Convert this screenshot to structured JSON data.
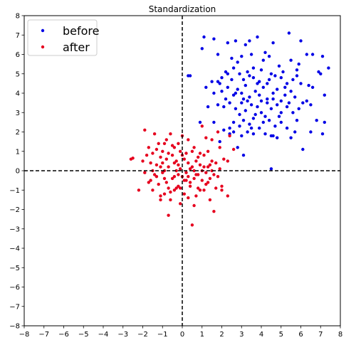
{
  "chart_data": {
    "type": "scatter",
    "title": "Standardization",
    "xlabel": "",
    "ylabel": "",
    "xlim": [
      -8,
      8
    ],
    "ylim": [
      -8,
      8
    ],
    "xticks": [
      "−8",
      "−7",
      "−6",
      "−5",
      "−4",
      "−3",
      "−2",
      "−1",
      "0",
      "1",
      "2",
      "3",
      "4",
      "5",
      "6",
      "7",
      "8"
    ],
    "yticks": [
      "−8",
      "−7",
      "−6",
      "−5",
      "−4",
      "−3",
      "−2",
      "−1",
      "0",
      "1",
      "2",
      "3",
      "4",
      "5",
      "6",
      "7",
      "8"
    ],
    "grid": false,
    "reference_lines": {
      "x": 0,
      "y": 0,
      "style": "dashed"
    },
    "legend": {
      "position": "top-left"
    },
    "series": [
      {
        "name": "before",
        "color": "#0000e6",
        "points": [
          [
            1.1,
            6.9
          ],
          [
            1.6,
            6.8
          ],
          [
            2.3,
            6.6
          ],
          [
            2.7,
            6.7
          ],
          [
            3.2,
            6.5
          ],
          [
            3.4,
            6.7
          ],
          [
            3.8,
            6.9
          ],
          [
            4.2,
            6.1
          ],
          [
            4.6,
            6.6
          ],
          [
            5.4,
            7.1
          ],
          [
            6.0,
            6.7
          ],
          [
            6.6,
            6.0
          ],
          [
            7.1,
            5.9
          ],
          [
            7.4,
            5.3
          ],
          [
            1.0,
            6.3
          ],
          [
            1.8,
            6.0
          ],
          [
            2.5,
            5.8
          ],
          [
            3.0,
            5.9
          ],
          [
            3.5,
            6.0
          ],
          [
            4.1,
            5.7
          ],
          [
            4.4,
            5.9
          ],
          [
            4.9,
            5.4
          ],
          [
            5.5,
            5.7
          ],
          [
            5.8,
            5.2
          ],
          [
            6.3,
            6.0
          ],
          [
            7.0,
            5.0
          ],
          [
            0.3,
            4.9
          ],
          [
            0.4,
            4.9
          ],
          [
            1.5,
            4.6
          ],
          [
            1.8,
            4.6
          ],
          [
            2.0,
            4.8
          ],
          [
            2.3,
            5.0
          ],
          [
            2.6,
            5.3
          ],
          [
            2.9,
            5.0
          ],
          [
            3.1,
            4.7
          ],
          [
            3.3,
            5.1
          ],
          [
            3.6,
            4.8
          ],
          [
            3.9,
            4.6
          ],
          [
            4.3,
            4.5
          ],
          [
            4.7,
            4.9
          ],
          [
            5.0,
            4.8
          ],
          [
            5.3,
            4.5
          ],
          [
            5.6,
            4.7
          ],
          [
            6.0,
            4.5
          ],
          [
            6.4,
            4.4
          ],
          [
            1.2,
            4.3
          ],
          [
            1.6,
            4.0
          ],
          [
            2.0,
            4.1
          ],
          [
            2.3,
            4.3
          ],
          [
            2.6,
            3.9
          ],
          [
            2.8,
            4.2
          ],
          [
            3.0,
            4.0
          ],
          [
            3.2,
            4.4
          ],
          [
            3.4,
            3.8
          ],
          [
            3.7,
            4.1
          ],
          [
            3.9,
            3.9
          ],
          [
            4.1,
            4.3
          ],
          [
            4.3,
            3.7
          ],
          [
            4.6,
            4.0
          ],
          [
            4.8,
            4.2
          ],
          [
            5.0,
            3.6
          ],
          [
            5.2,
            3.9
          ],
          [
            5.5,
            4.1
          ],
          [
            5.7,
            3.8
          ],
          [
            6.1,
            3.5
          ],
          [
            6.6,
            4.3
          ],
          [
            7.2,
            3.9
          ],
          [
            1.3,
            3.3
          ],
          [
            1.8,
            3.4
          ],
          [
            2.1,
            3.3
          ],
          [
            2.4,
            3.5
          ],
          [
            2.7,
            3.2
          ],
          [
            3.0,
            3.5
          ],
          [
            3.2,
            3.1
          ],
          [
            3.5,
            3.4
          ],
          [
            3.8,
            3.3
          ],
          [
            4.0,
            3.0
          ],
          [
            4.3,
            3.5
          ],
          [
            4.5,
            3.2
          ],
          [
            4.8,
            3.4
          ],
          [
            5.0,
            3.0
          ],
          [
            5.3,
            3.3
          ],
          [
            5.6,
            3.0
          ],
          [
            5.9,
            3.2
          ],
          [
            6.5,
            3.4
          ],
          [
            6.8,
            2.6
          ],
          [
            7.2,
            2.5
          ],
          [
            0.9,
            2.5
          ],
          [
            1.6,
            2.5
          ],
          [
            2.1,
            2.1
          ],
          [
            2.4,
            2.2
          ],
          [
            2.6,
            2.5
          ],
          [
            2.9,
            2.3
          ],
          [
            3.1,
            2.6
          ],
          [
            3.4,
            2.4
          ],
          [
            3.6,
            2.7
          ],
          [
            3.9,
            2.2
          ],
          [
            4.1,
            2.5
          ],
          [
            4.4,
            2.6
          ],
          [
            4.7,
            2.3
          ],
          [
            5.0,
            2.5
          ],
          [
            5.3,
            2.2
          ],
          [
            5.7,
            2.0
          ],
          [
            6.5,
            2.0
          ],
          [
            7.1,
            1.9
          ],
          [
            1.9,
            1.5
          ],
          [
            2.4,
            1.9
          ],
          [
            2.6,
            2.0
          ],
          [
            3.0,
            1.8
          ],
          [
            3.3,
            2.0
          ],
          [
            3.6,
            1.9
          ],
          [
            4.2,
            1.9
          ],
          [
            4.5,
            1.8
          ],
          [
            4.8,
            1.7
          ],
          [
            5.5,
            1.7
          ],
          [
            2.8,
            1.2
          ],
          [
            3.1,
            0.8
          ],
          [
            6.1,
            1.1
          ],
          [
            4.5,
            0.1
          ],
          [
            2.2,
            5.1
          ],
          [
            2.8,
            5.6
          ],
          [
            3.6,
            5.3
          ],
          [
            4.0,
            5.2
          ],
          [
            4.4,
            4.7
          ],
          [
            5.1,
            5.1
          ],
          [
            5.8,
            4.9
          ],
          [
            6.9,
            5.1
          ],
          [
            2.5,
            4.7
          ],
          [
            3.1,
            3.7
          ],
          [
            3.3,
            3.6
          ],
          [
            4.6,
            3.7
          ],
          [
            5.2,
            4.3
          ],
          [
            5.4,
            3.5
          ],
          [
            6.3,
            3.6
          ],
          [
            2.9,
            2.9
          ],
          [
            3.7,
            2.9
          ],
          [
            4.2,
            2.8
          ],
          [
            4.9,
            2.8
          ],
          [
            5.8,
            2.6
          ],
          [
            3.5,
            2.2
          ],
          [
            4.6,
            1.8
          ],
          [
            2.2,
            3.7
          ],
          [
            1.9,
            4.5
          ],
          [
            2.7,
            4.0
          ],
          [
            3.8,
            4.5
          ],
          [
            4.0,
            3.6
          ],
          [
            5.9,
            5.5
          ],
          [
            3.4,
            4.9
          ],
          [
            4.5,
            5.0
          ]
        ]
      },
      {
        "name": "after",
        "color": "#e6001e",
        "points": [
          [
            -2.6,
            0.6
          ],
          [
            -2.5,
            0.65
          ],
          [
            -2.2,
            -1.0
          ],
          [
            -1.9,
            2.1
          ],
          [
            -1.8,
            0.8
          ],
          [
            -1.7,
            -0.6
          ],
          [
            -1.6,
            0.4
          ],
          [
            -1.5,
            0.0
          ],
          [
            -1.4,
            1.9
          ],
          [
            -1.3,
            -0.3
          ],
          [
            -1.2,
            1.4
          ],
          [
            -1.1,
            -1.5
          ],
          [
            -1.0,
            1.0
          ],
          [
            -0.9,
            -1.2
          ],
          [
            -0.8,
            0.6
          ],
          [
            -0.7,
            -2.3
          ],
          [
            -0.6,
            1.9
          ],
          [
            -0.5,
            -0.4
          ],
          [
            -0.4,
            1.2
          ],
          [
            -0.3,
            -0.9
          ],
          [
            -0.2,
            0.3
          ],
          [
            -0.1,
            -1.7
          ],
          [
            0.0,
            1.8
          ],
          [
            0.1,
            -0.5
          ],
          [
            0.2,
            0.9
          ],
          [
            0.3,
            -1.4
          ],
          [
            0.4,
            0.1
          ],
          [
            0.5,
            -2.8
          ],
          [
            0.6,
            1.2
          ],
          [
            0.7,
            -0.2
          ],
          [
            0.8,
            0.7
          ],
          [
            0.9,
            -1.0
          ],
          [
            1.0,
            2.3
          ],
          [
            1.1,
            0.2
          ],
          [
            1.2,
            -0.7
          ],
          [
            1.3,
            1.0
          ],
          [
            1.4,
            -1.5
          ],
          [
            1.5,
            1.6
          ],
          [
            1.6,
            -2.1
          ],
          [
            1.7,
            0.4
          ],
          [
            1.8,
            -0.3
          ],
          [
            1.9,
            1.2
          ],
          [
            2.0,
            -0.8
          ],
          [
            2.1,
            0.6
          ],
          [
            2.3,
            0.5
          ],
          [
            2.4,
            1.8
          ],
          [
            2.6,
            1.1
          ],
          [
            1.8,
            2.0
          ],
          [
            -1.6,
            -0.5
          ],
          [
            -1.5,
            0.9
          ],
          [
            -1.4,
            -0.2
          ],
          [
            -1.3,
            0.3
          ],
          [
            -1.2,
            -0.7
          ],
          [
            -1.1,
            0.7
          ],
          [
            -1.0,
            -0.1
          ],
          [
            -0.9,
            1.4
          ],
          [
            -0.8,
            -0.6
          ],
          [
            -0.7,
            0.2
          ],
          [
            -0.6,
            -1.1
          ],
          [
            -0.5,
            0.8
          ],
          [
            -0.4,
            -0.3
          ],
          [
            -0.3,
            0.5
          ],
          [
            -0.2,
            -0.8
          ],
          [
            -0.1,
            0.1
          ],
          [
            0.0,
            -0.3
          ],
          [
            0.1,
            0.6
          ],
          [
            0.2,
            -0.1
          ],
          [
            0.3,
            0.4
          ],
          [
            0.4,
            -0.6
          ],
          [
            0.5,
            0.2
          ],
          [
            0.6,
            -0.4
          ],
          [
            0.7,
            0.5
          ],
          [
            0.8,
            -0.2
          ],
          [
            0.9,
            0.3
          ],
          [
            1.0,
            -0.5
          ],
          [
            1.1,
            0.8
          ],
          [
            1.2,
            -0.1
          ],
          [
            1.3,
            0.2
          ],
          [
            1.4,
            -0.4
          ],
          [
            1.5,
            0.5
          ],
          [
            1.6,
            -0.2
          ],
          [
            2.0,
            -1.0
          ],
          [
            2.3,
            -1.3
          ],
          [
            -2.0,
            0.5
          ],
          [
            -1.9,
            -0.1
          ],
          [
            -1.7,
            1.2
          ],
          [
            -1.3,
            1.1
          ],
          [
            -1.1,
            -1.3
          ],
          [
            -0.9,
            -0.4
          ],
          [
            -0.7,
            0.9
          ],
          [
            -0.6,
            -1.5
          ],
          [
            -0.5,
            1.3
          ],
          [
            -0.4,
            -1.0
          ],
          [
            -0.3,
            0.0
          ],
          [
            -0.2,
            1.4
          ],
          [
            -0.1,
            -0.9
          ],
          [
            0.0,
            0.8
          ],
          [
            0.1,
            -1.2
          ],
          [
            0.3,
            1.6
          ],
          [
            0.4,
            -0.8
          ],
          [
            0.6,
            0.0
          ],
          [
            0.7,
            -1.3
          ],
          [
            0.9,
            0.9
          ],
          [
            1.1,
            -1.0
          ],
          [
            1.3,
            -0.6
          ],
          [
            1.5,
            0.0
          ],
          [
            1.7,
            -0.9
          ],
          [
            1.9,
            0.1
          ],
          [
            0.2,
            -0.5
          ],
          [
            -0.8,
            1.6
          ],
          [
            -1.0,
            0.4
          ],
          [
            0.5,
            1.0
          ],
          [
            1.2,
            1.7
          ],
          [
            -1.1,
            0.2
          ],
          [
            -0.7,
            -0.9
          ],
          [
            -0.2,
            -0.2
          ],
          [
            0.3,
            -0.3
          ],
          [
            0.8,
            -0.9
          ],
          [
            1.4,
            0.3
          ],
          [
            -0.4,
            0.4
          ],
          [
            -1.5,
            -1.0
          ],
          [
            -0.1,
            1.0
          ],
          [
            0.6,
            -1.8
          ],
          [
            -0.9,
            0.0
          ],
          [
            1.0,
            0.0
          ]
        ]
      }
    ]
  }
}
